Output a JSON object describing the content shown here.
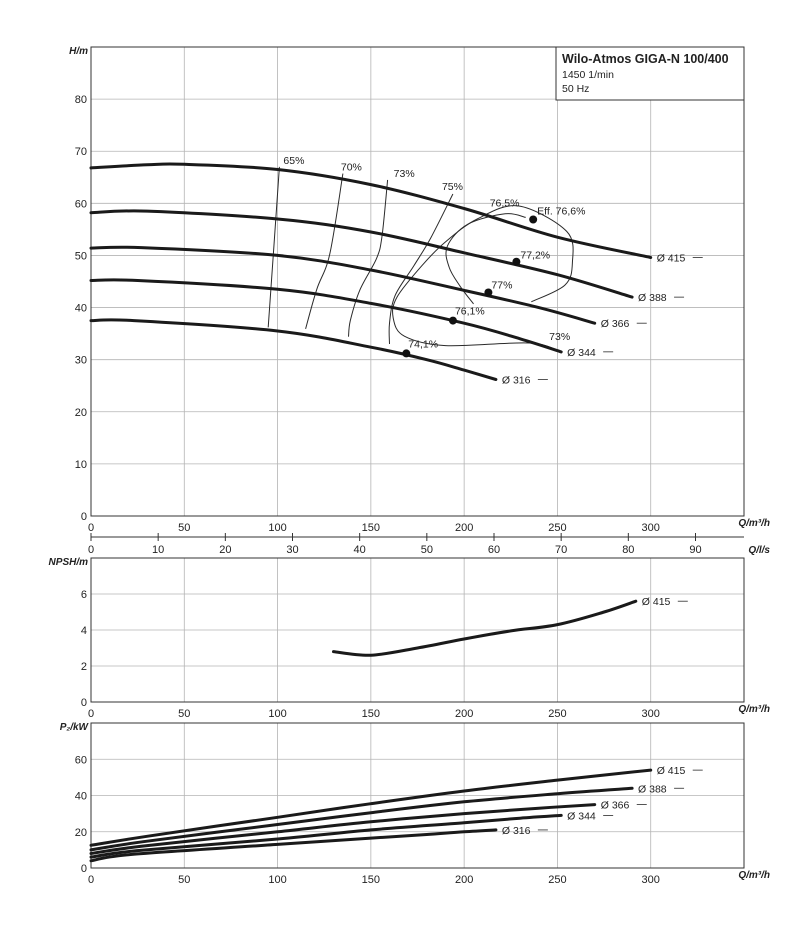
{
  "chart_data": [
    {
      "type": "line",
      "title": "Wilo-Atmos GIGA-N 100/400",
      "subtitle_lines": [
        "1450 1/min",
        "50 Hz"
      ],
      "ylabel": "H/m",
      "xlabel": "Q/m³/h",
      "xlim": [
        0,
        350
      ],
      "ylim": [
        0,
        90
      ],
      "x_ticks": [
        0,
        50,
        100,
        150,
        200,
        250,
        300
      ],
      "y_ticks": [
        0,
        10,
        20,
        30,
        40,
        50,
        60,
        70,
        80
      ],
      "secondary_x": {
        "label": "Q/l/s",
        "ticks": [
          0,
          10,
          20,
          30,
          40,
          50,
          60,
          70,
          80,
          90
        ]
      },
      "grid": true,
      "series": [
        {
          "name": "Ø 415",
          "x": [
            0,
            30,
            50,
            100,
            150,
            200,
            250,
            300
          ],
          "y": [
            66.8,
            67.4,
            67.5,
            66.5,
            63.6,
            59.0,
            53.5,
            49.6
          ]
        },
        {
          "name": "Ø 388",
          "x": [
            0,
            30,
            100,
            150,
            200,
            250,
            290
          ],
          "y": [
            58.2,
            58.5,
            57.0,
            54.5,
            50.5,
            46.3,
            42.0
          ]
        },
        {
          "name": "Ø 366",
          "x": [
            0,
            27,
            100,
            150,
            200,
            240,
            270
          ],
          "y": [
            51.4,
            51.5,
            50.0,
            47.2,
            43.3,
            40.0,
            37.0
          ]
        },
        {
          "name": "Ø 344",
          "x": [
            0,
            25,
            100,
            150,
            200,
            230,
            252
          ],
          "y": [
            45.2,
            45.2,
            43.5,
            40.8,
            37.0,
            34.0,
            31.5
          ]
        },
        {
          "name": "Ø 316",
          "x": [
            0,
            23,
            100,
            150,
            180,
            200,
            217
          ],
          "y": [
            37.5,
            37.5,
            35.5,
            32.4,
            30.0,
            28.0,
            26.2
          ]
        }
      ],
      "bep_points": [
        {
          "x": 237,
          "y": 56.9,
          "label": "Eff. 76,6%"
        },
        {
          "x": 228,
          "y": 48.8,
          "label": "77,2%"
        },
        {
          "x": 213,
          "y": 42.9,
          "label": "77%"
        },
        {
          "x": 194,
          "y": 37.5,
          "label": "76,1%"
        },
        {
          "x": 169,
          "y": 31.2,
          "label": "74,1%"
        }
      ],
      "efficiency_contours": [
        {
          "label": "65%",
          "x": [
            95,
            101
          ],
          "y": [
            36.2,
            67.0
          ]
        },
        {
          "label": "70%",
          "x": [
            115,
            121,
            128,
            135
          ],
          "y": [
            35.9,
            43.5,
            50.3,
            65.7
          ]
        },
        {
          "label": "73%",
          "x": [
            138,
            139,
            144,
            153,
            156,
            159
          ],
          "y": [
            34.4,
            37.5,
            43.3,
            49.4,
            53.8,
            64.5
          ]
        },
        {
          "label": "75%",
          "x": [
            160,
            160,
            163,
            173,
            182,
            194
          ],
          "y": [
            33.0,
            37.0,
            42.3,
            48.0,
            53.3,
            61.8
          ]
        },
        {
          "label": "76,5%",
          "x": [
            205,
            198,
            192,
            191,
            202,
            222,
            233
          ],
          "y": [
            40.7,
            44.0,
            47.7,
            51.8,
            56.0,
            58.0,
            57.3
          ]
        },
        {
          "label": "Eff. 76,6%"
        },
        {
          "label": "77,2%"
        },
        {
          "label": "77%"
        },
        {
          "label": "76,1%"
        },
        {
          "label": "74,1%"
        },
        {
          "label": "73%",
          "x": [
            252,
            235,
            190,
            168,
            162,
            164,
            178,
            190,
            207,
            229,
            255,
            258,
            254,
            236
          ],
          "y": [
            31.5,
            33.2,
            32.7,
            34.5,
            38.0,
            42.0,
            48.3,
            52.6,
            57.0,
            59.5,
            54.6,
            48.6,
            44.3,
            41.1
          ]
        }
      ]
    },
    {
      "type": "line",
      "ylabel": "NPSH/m",
      "xlabel": "Q/m³/h",
      "xlim": [
        0,
        350
      ],
      "ylim": [
        0,
        8
      ],
      "x_ticks": [
        0,
        50,
        100,
        150,
        200,
        250,
        300
      ],
      "y_ticks": [
        0,
        2,
        4,
        6
      ],
      "grid": true,
      "series": [
        {
          "name": "Ø 415",
          "x": [
            130,
            150,
            175,
            200,
            225,
            250,
            275,
            292
          ],
          "y": [
            2.8,
            2.6,
            3.0,
            3.5,
            3.95,
            4.3,
            5.0,
            5.6
          ]
        }
      ]
    },
    {
      "type": "line",
      "ylabel": "P₂/kW",
      "xlabel": "Q/m³/h",
      "xlim": [
        0,
        350
      ],
      "ylim": [
        0,
        80
      ],
      "x_ticks": [
        0,
        50,
        100,
        150,
        200,
        250,
        300
      ],
      "y_ticks": [
        0,
        20,
        40,
        60
      ],
      "grid": true,
      "series": [
        {
          "name": "Ø 415",
          "x": [
            0,
            30,
            100,
            150,
            200,
            250,
            300
          ],
          "y": [
            12.5,
            17.5,
            28.0,
            35.5,
            42.5,
            48.5,
            54.0
          ]
        },
        {
          "name": "Ø 388",
          "x": [
            0,
            28,
            100,
            150,
            200,
            250,
            290
          ],
          "y": [
            10.0,
            14.5,
            24.0,
            30.5,
            36.5,
            41.0,
            44.0
          ]
        },
        {
          "name": "Ø 366",
          "x": [
            0,
            27,
            100,
            150,
            200,
            240,
            270
          ],
          "y": [
            8.0,
            12.0,
            20.0,
            25.5,
            30.0,
            33.0,
            35.0
          ]
        },
        {
          "name": "Ø 344",
          "x": [
            0,
            24,
            100,
            150,
            200,
            230,
            252
          ],
          "y": [
            6.0,
            9.5,
            16.0,
            21.0,
            25.0,
            27.5,
            29.0
          ]
        },
        {
          "name": "Ø 316",
          "x": [
            0,
            22,
            100,
            150,
            180,
            200,
            217
          ],
          "y": [
            4.0,
            7.5,
            13.0,
            16.5,
            18.5,
            20.0,
            21.0
          ]
        }
      ]
    }
  ]
}
